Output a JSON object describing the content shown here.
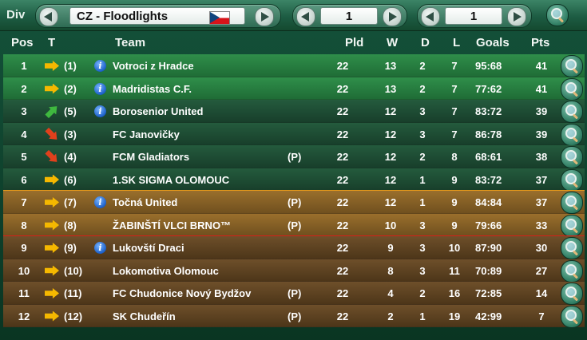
{
  "topbar": {
    "div_label": "Div",
    "division_name": "CZ - Floodlights",
    "selector_a_value": "1",
    "selector_b_value": "1"
  },
  "columns": {
    "pos": "Pos",
    "trend": "T",
    "team": "Team",
    "pld": "Pld",
    "w": "W",
    "d": "D",
    "l": "L",
    "goals": "Goals",
    "pts": "Pts"
  },
  "icons": {
    "flag": "czech-flag-icon",
    "magnifier": "magnifier-icon",
    "info": "info-icon",
    "trend_same": "arrow-right-icon",
    "trend_up": "arrow-up-icon",
    "trend_down": "arrow-down-icon"
  },
  "colors": {
    "promotion_zone": "#2f8f4a",
    "playoff_zone": "#9a6f2c",
    "relegation_zone": "#6e4f2a",
    "playoff_line": "#e89a1a",
    "relegation_line": "#d6201a"
  },
  "rows": [
    {
      "pos": "1",
      "trend": "same",
      "prev": "(1)",
      "info": true,
      "team": "Votroci z Hradce",
      "flag": "",
      "pld": "22",
      "w": "13",
      "d": "2",
      "l": "7",
      "goals": "95:68",
      "pts": "41",
      "zone": "promo"
    },
    {
      "pos": "2",
      "trend": "same",
      "prev": "(2)",
      "info": true,
      "team": "Madridistas C.F.",
      "flag": "",
      "pld": "22",
      "w": "13",
      "d": "2",
      "l": "7",
      "goals": "77:62",
      "pts": "41",
      "zone": "promo"
    },
    {
      "pos": "3",
      "trend": "up",
      "prev": "(5)",
      "info": true,
      "team": "Borosenior United",
      "flag": "",
      "pld": "22",
      "w": "12",
      "d": "3",
      "l": "7",
      "goals": "83:72",
      "pts": "39",
      "zone": "mid"
    },
    {
      "pos": "4",
      "trend": "down",
      "prev": "(3)",
      "info": false,
      "team": "FC Janovičky",
      "flag": "",
      "pld": "22",
      "w": "12",
      "d": "3",
      "l": "7",
      "goals": "86:78",
      "pts": "39",
      "zone": "mid"
    },
    {
      "pos": "5",
      "trend": "down",
      "prev": "(4)",
      "info": false,
      "team": "FCM Gladiators",
      "flag": "(P)",
      "pld": "22",
      "w": "12",
      "d": "2",
      "l": "8",
      "goals": "68:61",
      "pts": "38",
      "zone": "mid"
    },
    {
      "pos": "6",
      "trend": "same",
      "prev": "(6)",
      "info": false,
      "team": "1.SK SIGMA OLOMOUC",
      "flag": "",
      "pld": "22",
      "w": "12",
      "d": "1",
      "l": "9",
      "goals": "83:72",
      "pts": "37",
      "zone": "mid"
    },
    {
      "pos": "7",
      "trend": "same",
      "prev": "(7)",
      "info": true,
      "team": "Točná  United",
      "flag": "(P)",
      "pld": "22",
      "w": "12",
      "d": "1",
      "l": "9",
      "goals": "84:84",
      "pts": "37",
      "zone": "playoff"
    },
    {
      "pos": "8",
      "trend": "same",
      "prev": "(8)",
      "info": false,
      "team": "ŽABINŠTÍ VLCI BRNO™",
      "flag": "(P)",
      "pld": "22",
      "w": "10",
      "d": "3",
      "l": "9",
      "goals": "79:66",
      "pts": "33",
      "zone": "playoff"
    },
    {
      "pos": "9",
      "trend": "same",
      "prev": "(9)",
      "info": true,
      "team": "Lukovští Draci",
      "flag": "",
      "pld": "22",
      "w": "9",
      "d": "3",
      "l": "10",
      "goals": "87:90",
      "pts": "30",
      "zone": "releg"
    },
    {
      "pos": "10",
      "trend": "same",
      "prev": "(10)",
      "info": false,
      "team": "Lokomotiva Olomouc",
      "flag": "",
      "pld": "22",
      "w": "8",
      "d": "3",
      "l": "11",
      "goals": "70:89",
      "pts": "27",
      "zone": "releg"
    },
    {
      "pos": "11",
      "trend": "same",
      "prev": "(11)",
      "info": false,
      "team": "FC Chudonice  Nový Bydžov",
      "flag": "(P)",
      "pld": "22",
      "w": "4",
      "d": "2",
      "l": "16",
      "goals": "72:85",
      "pts": "14",
      "zone": "releg"
    },
    {
      "pos": "12",
      "trend": "same",
      "prev": "(12)",
      "info": false,
      "team": "SK Chudeřín",
      "flag": "(P)",
      "pld": "22",
      "w": "2",
      "d": "1",
      "l": "19",
      "goals": "42:99",
      "pts": "7",
      "zone": "releg"
    }
  ]
}
